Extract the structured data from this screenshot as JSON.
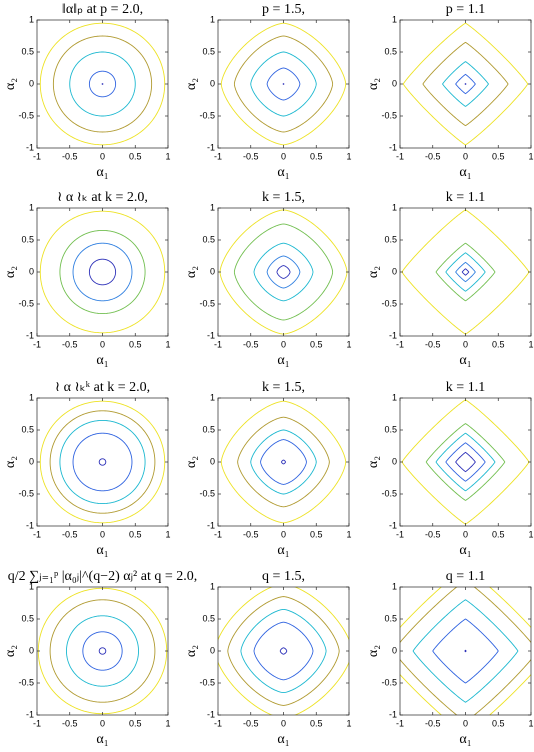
{
  "chart_data": [
    {
      "type": "contour",
      "title": "‖α‖ₚ at p = 2.0,",
      "xlabel": "α₁",
      "ylabel": "α₂",
      "xlim": [
        -1,
        1
      ],
      "ylim": [
        -1,
        1
      ],
      "xticks": [
        -1,
        -0.5,
        0,
        0.5,
        1
      ],
      "yticks": [
        -1,
        -0.5,
        0,
        0.5,
        1
      ],
      "exponent": 2.0,
      "series": [
        {
          "color": "#2b2fb8",
          "level": 0.005
        },
        {
          "color": "#2f63e0",
          "level": 0.2
        },
        {
          "color": "#1cb8d0",
          "level": 0.5
        },
        {
          "color": "#b09a30",
          "level": 0.75
        },
        {
          "color": "#ede224",
          "level": 0.95
        }
      ]
    },
    {
      "type": "contour",
      "title": "p = 1.5,",
      "xlabel": "α₁",
      "ylabel": "α₂",
      "xlim": [
        -1,
        1
      ],
      "ylim": [
        -1,
        1
      ],
      "xticks": [
        -1,
        -0.5,
        0,
        0.5,
        1
      ],
      "yticks": [
        -1,
        -0.5,
        0,
        0.5,
        1
      ],
      "exponent": 1.5,
      "series": [
        {
          "color": "#2b2fb8",
          "level": 0.005
        },
        {
          "color": "#2f63e0",
          "level": 0.25
        },
        {
          "color": "#1cb8d0",
          "level": 0.5
        },
        {
          "color": "#b09a30",
          "level": 0.75
        },
        {
          "color": "#ede224",
          "level": 0.95
        }
      ]
    },
    {
      "type": "contour",
      "title": "p = 1.1",
      "xlabel": "α₁",
      "ylabel": "α₂",
      "xlim": [
        -1,
        1
      ],
      "ylim": [
        -1,
        1
      ],
      "xticks": [
        -1,
        -0.5,
        0,
        0.5,
        1
      ],
      "yticks": [
        -1,
        -0.5,
        0,
        0.5,
        1
      ],
      "exponent": 1.1,
      "series": [
        {
          "color": "#2b2fb8",
          "level": 0.005
        },
        {
          "color": "#2f63e0",
          "level": 0.15
        },
        {
          "color": "#1cb8d0",
          "level": 0.35
        },
        {
          "color": "#b09a30",
          "level": 0.65
        },
        {
          "color": "#ede224",
          "level": 0.95
        }
      ]
    },
    {
      "type": "contour",
      "title": "≀ α ≀ₖ at k = 2.0,",
      "xlabel": "α₁",
      "ylabel": "α₂",
      "xlim": [
        -1,
        1
      ],
      "ylim": [
        -1,
        1
      ],
      "xticks": [
        -1,
        -0.5,
        0,
        0.5,
        1
      ],
      "yticks": [
        -1,
        -0.5,
        0,
        0.5,
        1
      ],
      "exponent": 2.0,
      "series": [
        {
          "color": "#2b2fb8",
          "level": 0.2
        },
        {
          "color": "#2f7fe0",
          "level": 0.45
        },
        {
          "color": "#72bf50",
          "level": 0.65
        },
        {
          "color": "#ede224",
          "level": 0.95
        }
      ]
    },
    {
      "type": "contour",
      "title": "k = 1.5,",
      "xlabel": "α₁",
      "ylabel": "α₂",
      "xlim": [
        -1,
        1
      ],
      "ylim": [
        -1,
        1
      ],
      "xticks": [
        -1,
        -0.5,
        0,
        0.5,
        1
      ],
      "yticks": [
        -1,
        -0.5,
        0,
        0.5,
        1
      ],
      "exponent": 1.5,
      "series": [
        {
          "color": "#2b2fb8",
          "level": 0.1
        },
        {
          "color": "#2f7fe0",
          "level": 0.25
        },
        {
          "color": "#1cb8d0",
          "level": 0.45
        },
        {
          "color": "#72bf50",
          "level": 0.75
        },
        {
          "color": "#ede224",
          "level": 0.97
        }
      ]
    },
    {
      "type": "contour",
      "title": "k = 1.1",
      "xlabel": "α₁",
      "ylabel": "α₂",
      "xlim": [
        -1,
        1
      ],
      "ylim": [
        -1,
        1
      ],
      "xticks": [
        -1,
        -0.5,
        0,
        0.5,
        1
      ],
      "yticks": [
        -1,
        -0.5,
        0,
        0.5,
        1
      ],
      "exponent": 1.1,
      "series": [
        {
          "color": "#2b2fb8",
          "level": 0.05
        },
        {
          "color": "#2f7fe0",
          "level": 0.15
        },
        {
          "color": "#1cb8d0",
          "level": 0.3
        },
        {
          "color": "#72bf50",
          "level": 0.45
        },
        {
          "color": "#ede224",
          "level": 0.97
        }
      ]
    },
    {
      "type": "contour",
      "title": "≀ α ≀ₖᵏ at k = 2.0,",
      "xlabel": "α₁",
      "ylabel": "α₂",
      "xlim": [
        -1,
        1
      ],
      "ylim": [
        -1,
        1
      ],
      "xticks": [
        -1,
        -0.5,
        0,
        0.5,
        1
      ],
      "yticks": [
        -1,
        -0.5,
        0,
        0.5,
        1
      ],
      "exponent": 2.0,
      "series": [
        {
          "color": "#2b2fb8",
          "level": 0.05
        },
        {
          "color": "#2f63e0",
          "level": 0.45
        },
        {
          "color": "#1cb8d0",
          "level": 0.65
        },
        {
          "color": "#b09a30",
          "level": 0.8
        },
        {
          "color": "#ede224",
          "level": 0.95
        }
      ]
    },
    {
      "type": "contour",
      "title": "k = 1.5,",
      "xlabel": "α₁",
      "ylabel": "α₂",
      "xlim": [
        -1,
        1
      ],
      "ylim": [
        -1,
        1
      ],
      "xticks": [
        -1,
        -0.5,
        0,
        0.5,
        1
      ],
      "yticks": [
        -1,
        -0.5,
        0,
        0.5,
        1
      ],
      "exponent": 1.5,
      "series": [
        {
          "color": "#2b2fb8",
          "level": 0.03
        },
        {
          "color": "#2f63e0",
          "level": 0.35
        },
        {
          "color": "#1cb8d0",
          "level": 0.5
        },
        {
          "color": "#b09a30",
          "level": 0.7
        },
        {
          "color": "#ede224",
          "level": 0.95
        }
      ]
    },
    {
      "type": "contour",
      "title": "k = 1.1",
      "xlabel": "α₁",
      "ylabel": "α₂",
      "xlim": [
        -1,
        1
      ],
      "ylim": [
        -1,
        1
      ],
      "xticks": [
        -1,
        -0.5,
        0,
        0.5,
        1
      ],
      "yticks": [
        -1,
        -0.5,
        0,
        0.5,
        1
      ],
      "exponent": 1.1,
      "series": [
        {
          "color": "#2b2fb8",
          "level": 0.15
        },
        {
          "color": "#2f63e0",
          "level": 0.3
        },
        {
          "color": "#1cb8d0",
          "level": 0.45
        },
        {
          "color": "#72bf50",
          "level": 0.6
        },
        {
          "color": "#ede224",
          "level": 0.97
        }
      ]
    },
    {
      "type": "contour",
      "title": "q/2 ∑ⱼ₌₁ᵖ |α₀ⱼ|^(q−2) αⱼ² at q = 2.0,",
      "xlabel": "α₁",
      "ylabel": "α₂",
      "xlim": [
        -1,
        1
      ],
      "ylim": [
        -1,
        1
      ],
      "xticks": [
        -1,
        -0.5,
        0,
        0.5,
        1
      ],
      "yticks": [
        -1,
        -0.5,
        0,
        0.5,
        1
      ],
      "exponent": 2.0,
      "series": [
        {
          "color": "#2b2fb8",
          "level": 0.05
        },
        {
          "color": "#2f63e0",
          "level": 0.3
        },
        {
          "color": "#1cb8d0",
          "level": 0.55
        },
        {
          "color": "#b09a30",
          "level": 0.8
        },
        {
          "color": "#ede224",
          "level": 0.98
        }
      ]
    },
    {
      "type": "contour",
      "title": "q = 1.5,",
      "xlabel": "α₁",
      "ylabel": "α₂",
      "xlim": [
        -1,
        1
      ],
      "ylim": [
        -1,
        1
      ],
      "xticks": [
        -1,
        -0.5,
        0,
        0.5,
        1
      ],
      "yticks": [
        -1,
        -0.5,
        0,
        0.5,
        1
      ],
      "exponent": 1.5,
      "series": [
        {
          "color": "#2b2fb8",
          "level": 0.05
        },
        {
          "color": "#2f63e0",
          "level": 0.45
        },
        {
          "color": "#1cb8d0",
          "level": 0.65
        },
        {
          "color": "#b09a30",
          "level": 0.85
        },
        {
          "color": "#ede224",
          "level": 1.05
        }
      ]
    },
    {
      "type": "contour",
      "title": "q = 1.1",
      "xlabel": "α₁",
      "ylabel": "α₂",
      "xlim": [
        -1,
        1
      ],
      "ylim": [
        -1,
        1
      ],
      "xticks": [
        -1,
        -0.5,
        0,
        0.5,
        1
      ],
      "yticks": [
        -1,
        -0.5,
        0,
        0.5,
        1
      ],
      "exponent": 1.1,
      "series": [
        {
          "color": "#2b2fb8",
          "level": 0.01
        },
        {
          "color": "#2f63e0",
          "level": 0.5
        },
        {
          "color": "#1cb8d0",
          "level": 0.8
        },
        {
          "color": "#b09a30",
          "level": 1.1
        },
        {
          "color": "#ede224",
          "level": 1.3
        }
      ]
    }
  ]
}
